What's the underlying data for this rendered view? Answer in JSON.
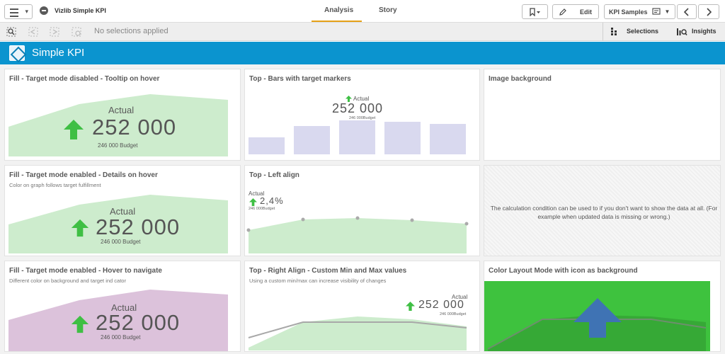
{
  "app": {
    "title": "Vizlib Simple KPI"
  },
  "nav": {
    "tabs": [
      {
        "label": "Analysis"
      },
      {
        "label": "Story"
      }
    ]
  },
  "toolbar": {
    "edit_label": "Edit",
    "sheet_label": "KPI Samples"
  },
  "selections": {
    "status": "No selections applied",
    "selections_label": "Selections",
    "insights_label": "Insights"
  },
  "sheet": {
    "title": "Simple KPI"
  },
  "colors": {
    "accent": "#0b94cf",
    "fill_green": "#cdeccd",
    "arrow_green": "#3fbf44",
    "fill_purple": "#dcc2db",
    "bar_lavender": "#d9d9ef",
    "bright_green": "#3ec23e",
    "icon_blue": "#3f73b4"
  },
  "cards": [
    {
      "title": "Fill - Target mode disabled - Tooltip on hover",
      "label": "Actual",
      "value": "252 000",
      "budget": "246 000 Budget"
    },
    {
      "title": "Top - Bars with target markers",
      "label": "Actual",
      "value": "252 000",
      "budget": "246 000Budget"
    },
    {
      "title": "Image background"
    },
    {
      "title": "Fill - Target mode enabled - Details on hover",
      "subtitle": "Color on graph follows target fulfillment",
      "label": "Actual",
      "value": "252 000",
      "budget": "246 000 Budget"
    },
    {
      "title": "Top - Left align",
      "label": "Actual",
      "value": "2,4%",
      "budget": "246 000Budget"
    },
    {
      "title": "",
      "note": "The calculation condition can be used to if you don't want to show the data at all. (For example when updated data is missing or wrong.)"
    },
    {
      "title": "Fill - Target mode enabled - Hover to navigate",
      "subtitle": "Different color on background and target ind cator",
      "label": "Actual",
      "value": "252 000",
      "budget": "246 000 Budget"
    },
    {
      "title": "Top - Right Align - Custom Min and Max values",
      "subtitle": "Using a custom min/max can increase visibility of changes",
      "label": "Actual",
      "value": "252 000",
      "budget": "246 000Budget"
    },
    {
      "title": "Color Layout Mode with icon as background"
    }
  ],
  "icons": [
    "menu-icon",
    "app-logo-icon",
    "bookmark-icon",
    "edit-icon",
    "sheet-icon",
    "chevron-left-icon",
    "chevron-right-icon",
    "smart-search-icon",
    "step-back-icon",
    "step-forward-icon",
    "clear-selections-icon",
    "selections-icon",
    "insights-icon",
    "arrow-up-icon"
  ]
}
